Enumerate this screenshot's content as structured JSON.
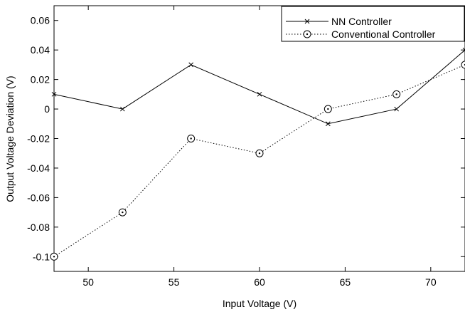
{
  "chart_data": {
    "type": "line",
    "title": "",
    "xlabel": "Input Voltage (V)",
    "ylabel": "Output Voltage Deviation (V)",
    "xlim": [
      48,
      72
    ],
    "ylim": [
      -0.11,
      0.07
    ],
    "x_ticks": [
      50,
      55,
      60,
      65,
      70
    ],
    "x_tick_labels": [
      "50",
      "55",
      "60",
      "65",
      "70"
    ],
    "y_ticks": [
      0.06,
      0.04,
      0.02,
      0,
      -0.02,
      -0.04,
      -0.06,
      -0.08,
      -0.1
    ],
    "y_tick_labels": [
      "0.06",
      "0.04",
      "0.02",
      "0",
      "-0.02",
      "-0.04",
      "-0.06",
      "-0.08",
      "-0.1"
    ],
    "grid": false,
    "legend_position": "top-right",
    "series": [
      {
        "name": "NN Controller",
        "marker": "x",
        "line": "solid",
        "x": [
          48,
          52,
          56,
          60,
          64,
          68,
          72
        ],
        "y": [
          0.01,
          0.0,
          0.03,
          0.01,
          -0.01,
          0.0,
          0.04
        ]
      },
      {
        "name": "Conventional Controller",
        "marker": "circle-dot",
        "line": "dotted",
        "x": [
          48,
          52,
          56,
          60,
          64,
          68,
          72
        ],
        "y": [
          -0.1,
          -0.07,
          -0.02,
          -0.03,
          0.0,
          0.01,
          0.03
        ]
      }
    ]
  }
}
